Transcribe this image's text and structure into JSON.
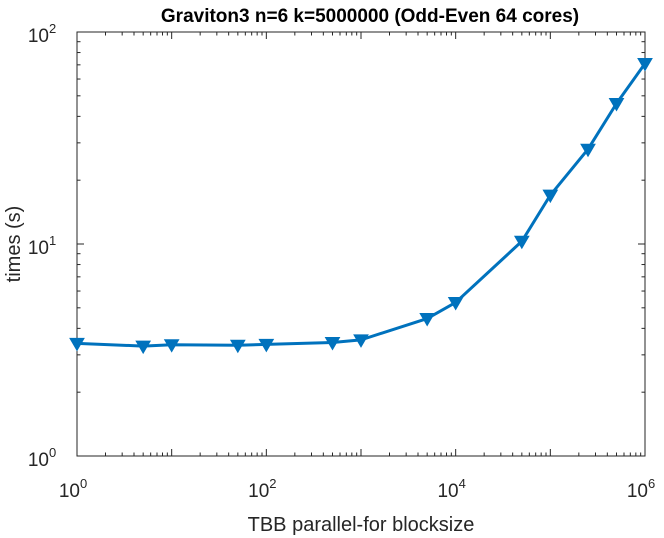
{
  "chart_data": {
    "type": "line",
    "title": "Graviton3 n=6 k=5000000 (Odd-Even 64 cores)",
    "xlabel": "TBB parallel-for blocksize",
    "ylabel": "times (s)",
    "xscale": "log",
    "yscale": "log",
    "xlim": [
      1,
      1000000
    ],
    "ylim": [
      1,
      100
    ],
    "x_ticks": [
      {
        "base": "10",
        "exp": "0"
      },
      {
        "base": "10",
        "exp": "2"
      },
      {
        "base": "10",
        "exp": "4"
      },
      {
        "base": "10",
        "exp": "6"
      }
    ],
    "y_ticks": [
      {
        "base": "10",
        "exp": "0"
      },
      {
        "base": "10",
        "exp": "1"
      },
      {
        "base": "10",
        "exp": "2"
      }
    ],
    "grid": false,
    "series": [
      {
        "color": "#0072BD",
        "marker": "triangle-down",
        "x": [
          1,
          5,
          10,
          50,
          100,
          500,
          1000,
          5000,
          10000,
          50000,
          100000,
          250000,
          500000,
          1000000
        ],
        "y": [
          3.4,
          3.3,
          3.35,
          3.33,
          3.36,
          3.43,
          3.53,
          4.45,
          5.3,
          10.3,
          17.0,
          28.0,
          46.0,
          71.0
        ]
      }
    ]
  }
}
